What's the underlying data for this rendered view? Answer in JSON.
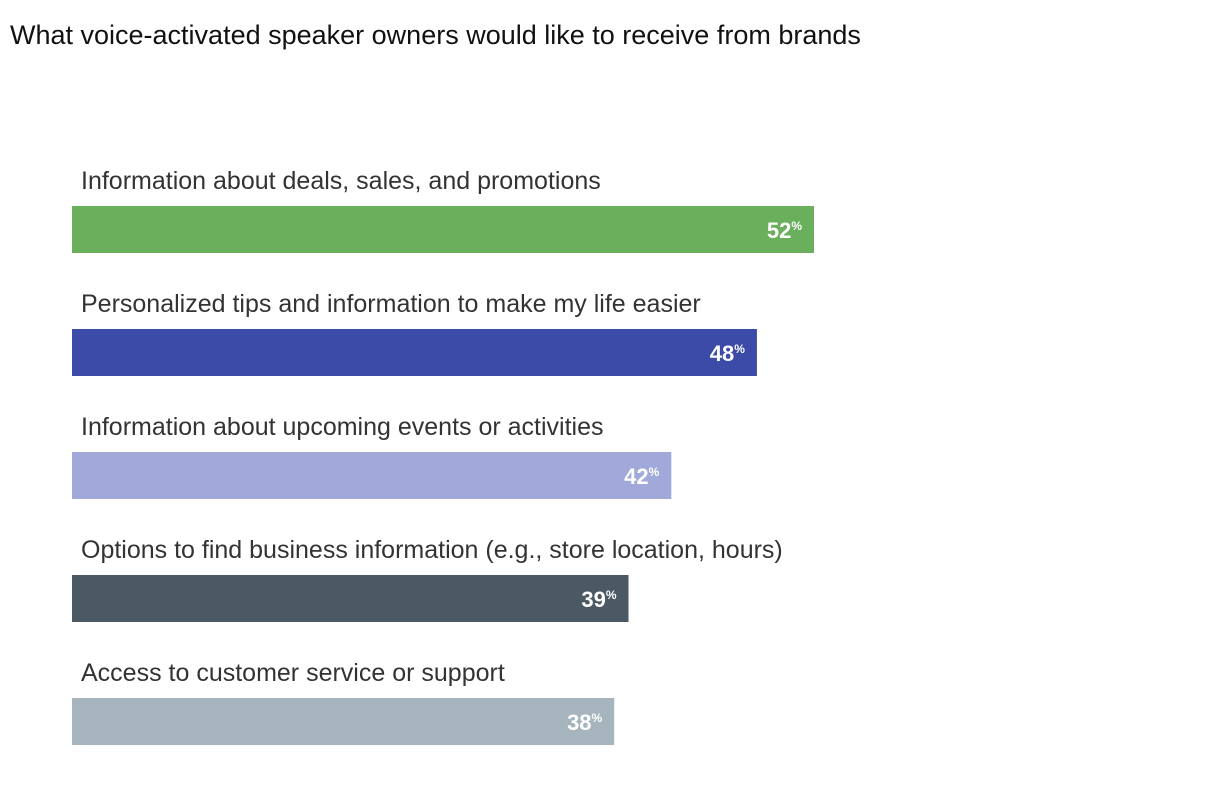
{
  "chart_data": {
    "type": "bar",
    "orientation": "horizontal",
    "title": "What voice-activated speaker owners would like to receive from brands",
    "categories": [
      "Information about deals, sales, and promotions",
      "Personalized tips and information to make my life easier",
      "Information about upcoming events or activities",
      "Options to find business information (e.g., store location, hours)",
      "Access to customer service or support"
    ],
    "values": [
      52,
      48,
      42,
      39,
      38
    ],
    "value_suffix": "%",
    "colors": [
      "#6aaf5c",
      "#3c4ba8",
      "#a0a9da",
      "#4a5963",
      "#a6b4bd"
    ],
    "xlabel": "",
    "ylabel": "",
    "xlim": [
      0,
      52
    ],
    "grid": false
  }
}
